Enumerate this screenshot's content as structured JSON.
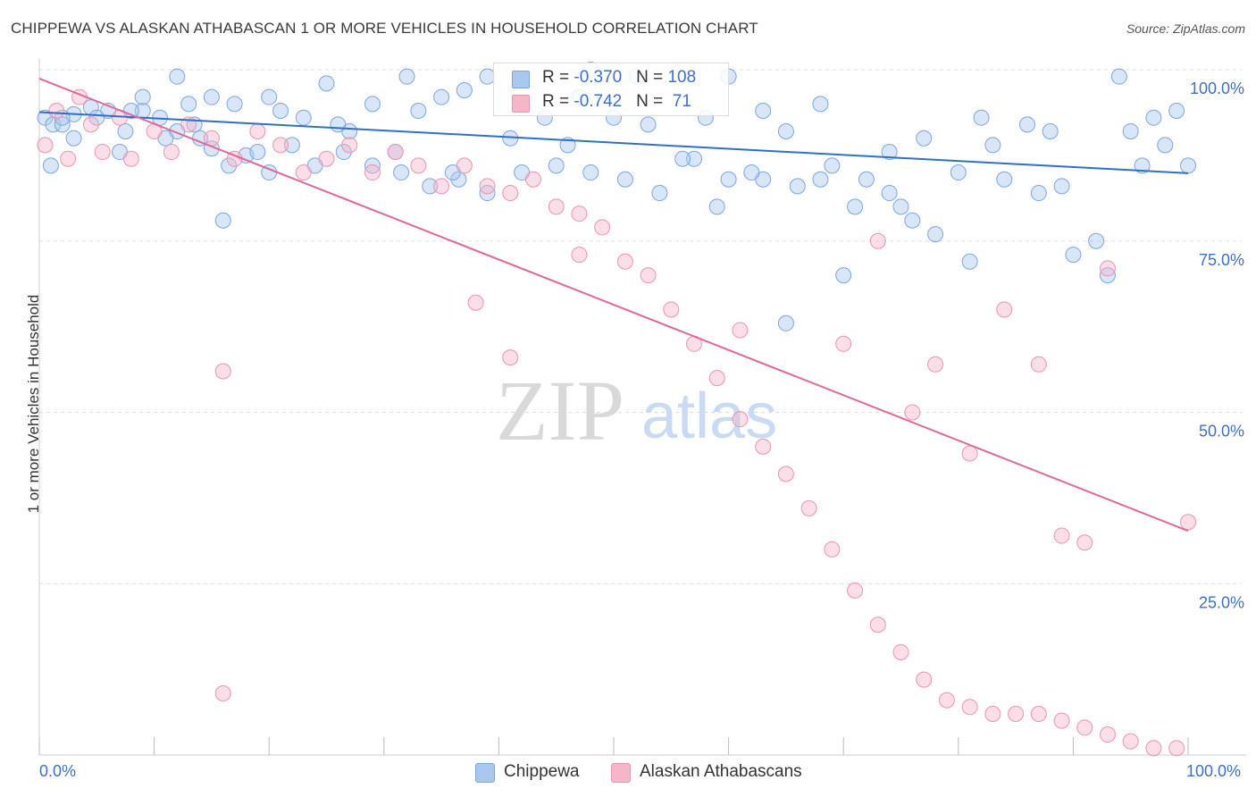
{
  "title": "CHIPPEWA VS ALASKAN ATHABASCAN 1 OR MORE VEHICLES IN HOUSEHOLD CORRELATION CHART",
  "source": "Source: ZipAtlas.com",
  "watermark": {
    "zip": "ZIP",
    "atlas": "atlas"
  },
  "legend": {
    "row1": {
      "r_label": "R = ",
      "r_value": "-0.370",
      "n_label": "N = ",
      "n_value": "108"
    },
    "row2": {
      "r_label": "R = ",
      "r_value": "-0.742",
      "n_label": "N = ",
      "n_value": " 71"
    }
  },
  "bottom_legend": {
    "series1": "Chippewa",
    "series2": "Alaskan Athabascans"
  },
  "colors": {
    "blue_fill": "#a9c8f0",
    "blue_stroke": "#7aa6df",
    "blue_line": "#2f6fcb",
    "pink_fill": "#f6b6c9",
    "pink_stroke": "#ec93ad",
    "pink_line": "#e0689a",
    "axis_text": "#3d6fc8",
    "grid": "#dddddd"
  },
  "chart_data": {
    "type": "scatter",
    "title": "CHIPPEWA VS ALASKAN ATHABASCAN 1 OR MORE VEHICLES IN HOUSEHOLD CORRELATION CHART",
    "xlabel": "",
    "ylabel": "1 or more Vehicles in Household",
    "xlim": [
      0,
      100
    ],
    "ylim": [
      0,
      100
    ],
    "x_tick_labels": [
      "0.0%",
      "100.0%"
    ],
    "y_tick_labels": [
      "25.0%",
      "50.0%",
      "75.0%",
      "100.0%"
    ],
    "y_ticks": [
      25,
      50,
      75,
      100
    ],
    "grid": "horizontal dashed",
    "legend_position": "top-center",
    "series": [
      {
        "name": "Chippewa",
        "color": "#a9c8f0",
        "trend": {
          "x": [
            0,
            100
          ],
          "y": [
            93.8,
            84.9
          ]
        },
        "points": [
          [
            0.5,
            93
          ],
          [
            1.2,
            92
          ],
          [
            2,
            92
          ],
          [
            3,
            93.5
          ],
          [
            4.5,
            94.5
          ],
          [
            6,
            94
          ],
          [
            7.5,
            91
          ],
          [
            9,
            94
          ],
          [
            10.5,
            93
          ],
          [
            12,
            91
          ],
          [
            13.5,
            92
          ],
          [
            15,
            88.5
          ],
          [
            16.5,
            86
          ],
          [
            18,
            87.5
          ],
          [
            20,
            85
          ],
          [
            22,
            89
          ],
          [
            24,
            86
          ],
          [
            26.5,
            88
          ],
          [
            29,
            86
          ],
          [
            31.5,
            85
          ],
          [
            34,
            83
          ],
          [
            36.5,
            84
          ],
          [
            39,
            82
          ],
          [
            42,
            85
          ],
          [
            45,
            86
          ],
          [
            48,
            85
          ],
          [
            51,
            84
          ],
          [
            54,
            82
          ],
          [
            57,
            87
          ],
          [
            60,
            84
          ],
          [
            63,
            84
          ],
          [
            66,
            83
          ],
          [
            69,
            86
          ],
          [
            72,
            84
          ],
          [
            75,
            80
          ],
          [
            78,
            76
          ],
          [
            81,
            72
          ],
          [
            84,
            84
          ],
          [
            87,
            82
          ],
          [
            90,
            73
          ],
          [
            93,
            70
          ],
          [
            96,
            86
          ],
          [
            99,
            94
          ],
          [
            1,
            86
          ],
          [
            3,
            90
          ],
          [
            5,
            93
          ],
          [
            7,
            88
          ],
          [
            9,
            96
          ],
          [
            11,
            90
          ],
          [
            13,
            95
          ],
          [
            15,
            96
          ],
          [
            17,
            95
          ],
          [
            19,
            88
          ],
          [
            21,
            94
          ],
          [
            23,
            93
          ],
          [
            25,
            98
          ],
          [
            27,
            91
          ],
          [
            29,
            95
          ],
          [
            31,
            88
          ],
          [
            33,
            94
          ],
          [
            35,
            96
          ],
          [
            37,
            97
          ],
          [
            39,
            99
          ],
          [
            41,
            90
          ],
          [
            44,
            93
          ],
          [
            47,
            96
          ],
          [
            50,
            93
          ],
          [
            53,
            92
          ],
          [
            56,
            87
          ],
          [
            59,
            80
          ],
          [
            62,
            85
          ],
          [
            65,
            91
          ],
          [
            68,
            84
          ],
          [
            71,
            80
          ],
          [
            74,
            88
          ],
          [
            77,
            90
          ],
          [
            80,
            85
          ],
          [
            83,
            89
          ],
          [
            86,
            92
          ],
          [
            89,
            83
          ],
          [
            92,
            75
          ],
          [
            95,
            91
          ],
          [
            98,
            89
          ],
          [
            100,
            86
          ],
          [
            16,
            78
          ],
          [
            36,
            85
          ],
          [
            46,
            89
          ],
          [
            58,
            93
          ],
          [
            68,
            95
          ],
          [
            74,
            82
          ],
          [
            82,
            93
          ],
          [
            88,
            91
          ],
          [
            94,
            99
          ],
          [
            97,
            93
          ],
          [
            63,
            94
          ],
          [
            65,
            63
          ],
          [
            70,
            70
          ],
          [
            76,
            78
          ],
          [
            52,
            99
          ],
          [
            12,
            99
          ],
          [
            8,
            94
          ],
          [
            20,
            96
          ],
          [
            60,
            99
          ],
          [
            32,
            99
          ],
          [
            48,
            100
          ],
          [
            2,
            93
          ],
          [
            14,
            90
          ],
          [
            26,
            92
          ]
        ]
      },
      {
        "name": "Alaskan Athabascans",
        "color": "#f6b6c9",
        "trend": {
          "x": [
            0,
            100
          ],
          "y": [
            98.7,
            32.7
          ]
        },
        "points": [
          [
            0.5,
            89
          ],
          [
            1.5,
            94
          ],
          [
            2.5,
            87
          ],
          [
            3.5,
            96
          ],
          [
            4.5,
            92
          ],
          [
            5.5,
            88
          ],
          [
            7,
            93
          ],
          [
            8,
            87
          ],
          [
            10,
            91
          ],
          [
            11.5,
            88
          ],
          [
            13,
            92
          ],
          [
            15,
            90
          ],
          [
            17,
            87
          ],
          [
            19,
            91
          ],
          [
            21,
            89
          ],
          [
            23,
            85
          ],
          [
            25,
            87
          ],
          [
            27,
            89
          ],
          [
            29,
            85
          ],
          [
            31,
            88
          ],
          [
            33,
            86
          ],
          [
            35,
            83
          ],
          [
            37,
            86
          ],
          [
            39,
            83
          ],
          [
            41,
            82
          ],
          [
            43,
            84
          ],
          [
            45,
            80
          ],
          [
            47,
            79
          ],
          [
            49,
            77
          ],
          [
            51,
            72
          ],
          [
            53,
            70
          ],
          [
            55,
            65
          ],
          [
            57,
            60
          ],
          [
            59,
            55
          ],
          [
            61,
            49
          ],
          [
            63,
            45
          ],
          [
            65,
            41
          ],
          [
            67,
            36
          ],
          [
            69,
            30
          ],
          [
            71,
            24
          ],
          [
            73,
            19
          ],
          [
            75,
            15
          ],
          [
            77,
            11
          ],
          [
            79,
            8
          ],
          [
            81,
            7
          ],
          [
            83,
            6
          ],
          [
            85,
            6
          ],
          [
            87,
            6
          ],
          [
            89,
            5
          ],
          [
            91,
            4
          ],
          [
            93,
            3
          ],
          [
            95,
            2
          ],
          [
            97,
            1
          ],
          [
            99,
            1
          ],
          [
            16,
            56
          ],
          [
            16,
            9
          ],
          [
            38,
            66
          ],
          [
            41,
            58
          ],
          [
            47,
            73
          ],
          [
            61,
            62
          ],
          [
            70,
            60
          ],
          [
            73,
            75
          ],
          [
            76,
            50
          ],
          [
            78,
            57
          ],
          [
            81,
            44
          ],
          [
            84,
            65
          ],
          [
            87,
            57
          ],
          [
            89,
            32
          ],
          [
            91,
            31
          ],
          [
            93,
            71
          ],
          [
            100,
            34
          ]
        ]
      }
    ]
  }
}
